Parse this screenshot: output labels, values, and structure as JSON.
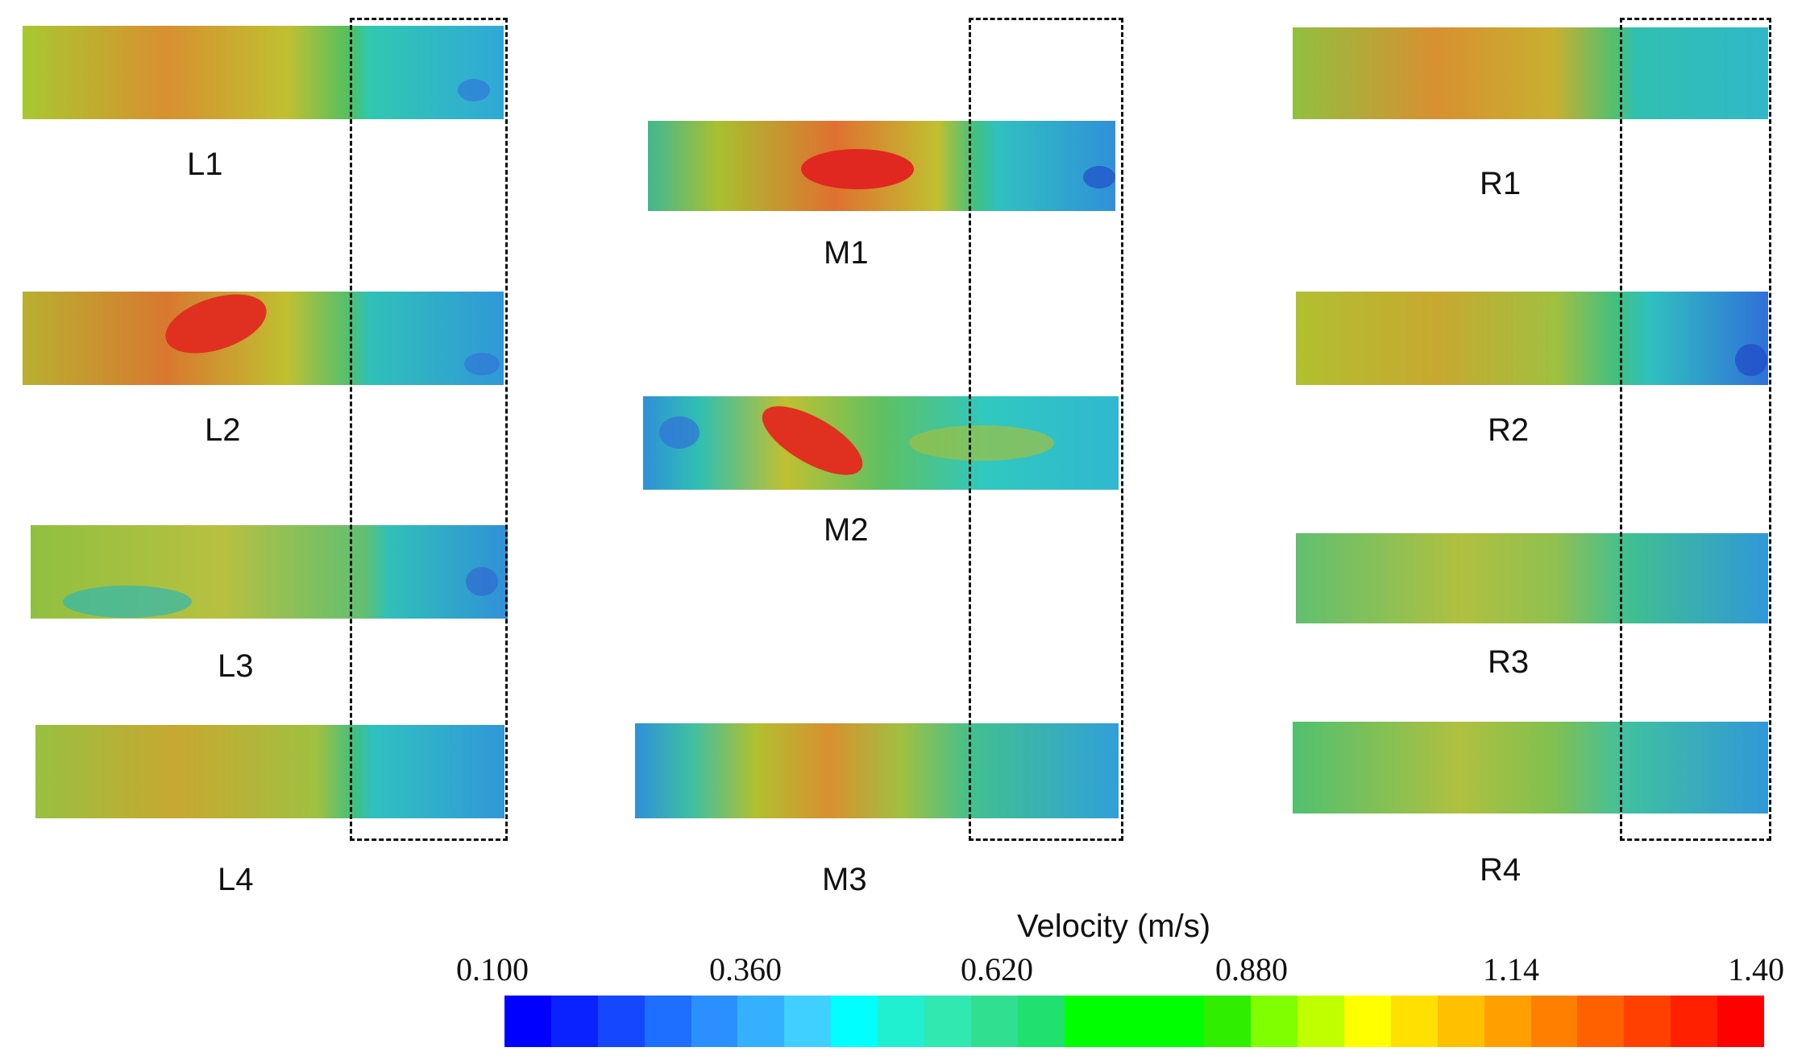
{
  "panels": [
    {
      "id": "L1",
      "label": "L1"
    },
    {
      "id": "L2",
      "label": "L2"
    },
    {
      "id": "L3",
      "label": "L3"
    },
    {
      "id": "L4",
      "label": "L4"
    },
    {
      "id": "M1",
      "label": "M1"
    },
    {
      "id": "M2",
      "label": "M2"
    },
    {
      "id": "M3",
      "label": "M3"
    },
    {
      "id": "R1",
      "label": "R1"
    },
    {
      "id": "R2",
      "label": "R2"
    },
    {
      "id": "R3",
      "label": "R3"
    },
    {
      "id": "R4",
      "label": "R4"
    }
  ],
  "legend": {
    "title": "Velocity (m/s)",
    "ticks": [
      "0.100",
      "0.360",
      "0.620",
      "0.880",
      "1.14",
      "1.40"
    ],
    "colors": [
      "#0000ff",
      "#0a22ff",
      "#1448ff",
      "#1e6eff",
      "#2a90ff",
      "#35b0ff",
      "#3fd0ff",
      "#00ffff",
      "#20f0d0",
      "#30e8b0",
      "#30e090",
      "#20e070",
      "#00ff00",
      "#00ff00",
      "#00ff00",
      "#30ee00",
      "#80ff00",
      "#c0ff00",
      "#ffff00",
      "#ffe000",
      "#ffc000",
      "#ffa000",
      "#ff8000",
      "#ff6000",
      "#ff4000",
      "#ff2000",
      "#ff0000"
    ]
  }
}
